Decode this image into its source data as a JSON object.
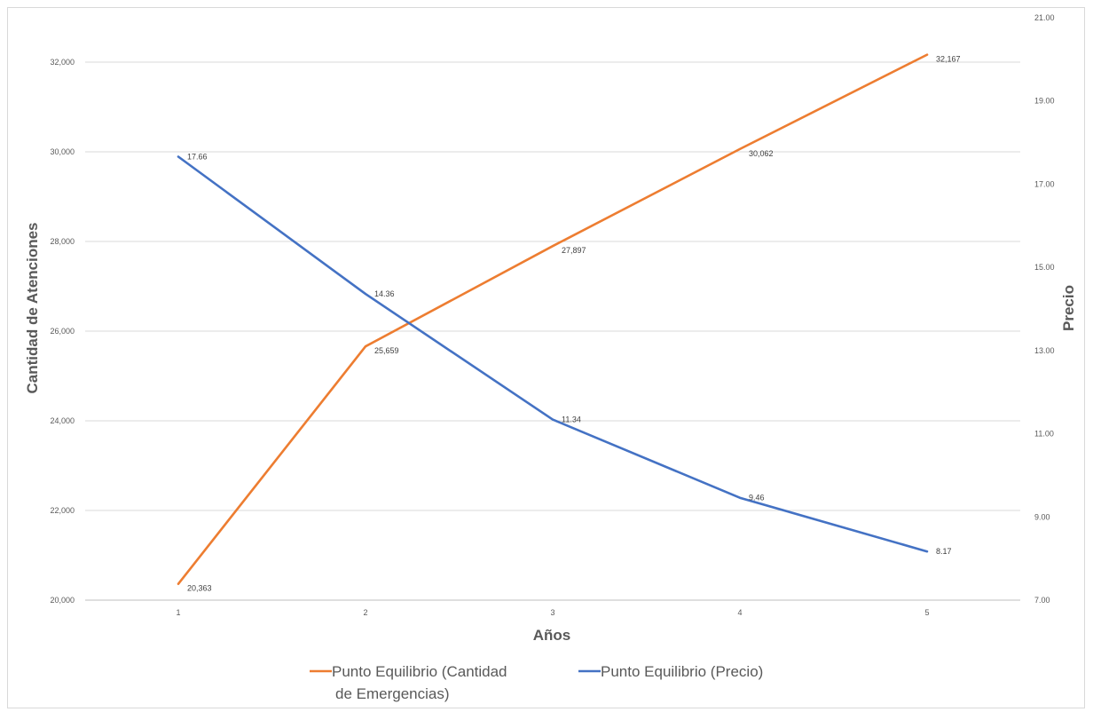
{
  "chart_data": {
    "type": "line",
    "categories": [
      "1",
      "2",
      "3",
      "4",
      "5"
    ],
    "xlabel": "Años",
    "y_left_label": "Cantidad de Atenciones",
    "y_right_label": "Precio",
    "y_left_lim": [
      20000,
      32000
    ],
    "y_left_ticks": [
      "20,000",
      "22,000",
      "24,000",
      "26,000",
      "28,000",
      "30,000",
      "32,000"
    ],
    "y_right_lim": [
      7.0,
      21.0
    ],
    "y_right_ticks": [
      "7.00",
      "9.00",
      "11.00",
      "13.00",
      "15.00",
      "17.00",
      "19.00",
      "21.00"
    ],
    "grid": true,
    "legend_position": "bottom",
    "series": [
      {
        "name": "Punto Equilibrio (Cantidad de Emergencias)",
        "name_lines": [
          "Punto Equilibrio (Cantidad",
          "de Emergencias)"
        ],
        "axis": "left",
        "color": "#ED7D31",
        "values": [
          20363,
          25659,
          27897,
          30062,
          32167
        ],
        "labels": [
          "20,363",
          "25,659",
          "27,897",
          "30,062",
          "32,167"
        ]
      },
      {
        "name": "Punto Equilibrio (Precio)",
        "name_lines": [
          "Punto Equilibrio (Precio)"
        ],
        "axis": "right",
        "color": "#4472C4",
        "values": [
          17.66,
          14.36,
          11.34,
          9.46,
          8.17
        ],
        "labels": [
          "17.66",
          "14.36",
          "11.34",
          "9.46",
          "8.17"
        ]
      }
    ]
  }
}
